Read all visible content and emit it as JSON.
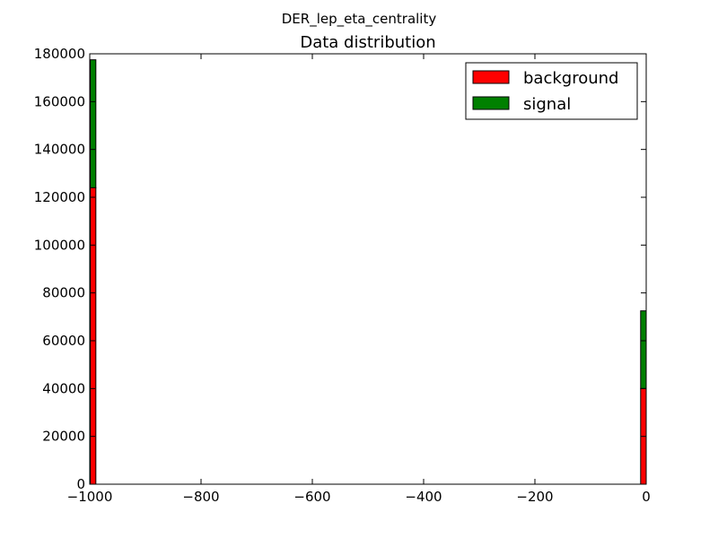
{
  "chart_data": {
    "type": "bar",
    "suptitle": "DER_lep_eta_centrality",
    "title": "Data distribution",
    "xlabel": "",
    "ylabel": "",
    "xlim": [
      -1000,
      0
    ],
    "ylim": [
      0,
      180000
    ],
    "stacked": true,
    "bin_width": 10,
    "xticks": [
      -1000,
      -800,
      -600,
      -400,
      -200,
      0
    ],
    "xtick_labels": [
      "−1000",
      "−800",
      "−600",
      "−400",
      "−200",
      "0"
    ],
    "yticks": [
      0,
      20000,
      40000,
      60000,
      80000,
      100000,
      120000,
      140000,
      160000,
      180000
    ],
    "ytick_labels": [
      "0",
      "20000",
      "40000",
      "60000",
      "80000",
      "100000",
      "120000",
      "140000",
      "160000",
      "180000"
    ],
    "bins": [
      -999,
      0
    ],
    "series": [
      {
        "name": "background",
        "color": "#ff0000",
        "values": [
          124000,
          40000
        ]
      },
      {
        "name": "signal",
        "color": "#008000",
        "values": [
          53500,
          32500
        ]
      }
    ],
    "legend_position": "top-right",
    "grid": false
  }
}
